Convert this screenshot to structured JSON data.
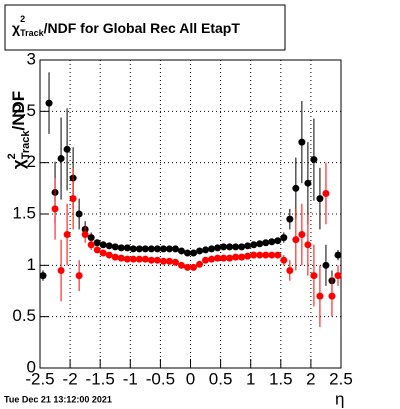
{
  "chart_data": {
    "type": "scatter",
    "title": {
      "symbol": "χ",
      "superscript": "2",
      "subscript": "Track",
      "text": "/NDF for Global Rec All EtapT"
    },
    "y_label": {
      "symbol": "χ",
      "superscript": "2",
      "subscript": "Track",
      "text": "/NDF"
    },
    "x_label": "η",
    "footer": "Tue Dec 21 13:12:00 2021",
    "x": [
      -2.45,
      -2.35,
      -2.25,
      -2.15,
      -2.05,
      -1.95,
      -1.85,
      -1.75,
      -1.65,
      -1.55,
      -1.45,
      -1.35,
      -1.25,
      -1.15,
      -1.05,
      -0.95,
      -0.85,
      -0.75,
      -0.65,
      -0.55,
      -0.45,
      -0.35,
      -0.25,
      -0.15,
      -0.05,
      0.05,
      0.15,
      0.25,
      0.35,
      0.45,
      0.55,
      0.65,
      0.75,
      0.85,
      0.95,
      1.05,
      1.15,
      1.25,
      1.35,
      1.45,
      1.55,
      1.65,
      1.75,
      1.85,
      1.95,
      2.05,
      2.15,
      2.25,
      2.35,
      2.45
    ],
    "series": [
      {
        "color": "#000000",
        "values": [
          0.9,
          2.58,
          1.71,
          2.04,
          2.13,
          1.85,
          1.5,
          1.35,
          1.27,
          1.22,
          1.2,
          1.19,
          1.18,
          1.17,
          1.17,
          1.16,
          1.16,
          1.16,
          1.16,
          1.16,
          1.16,
          1.16,
          1.16,
          1.14,
          1.12,
          1.12,
          1.14,
          1.15,
          1.16,
          1.17,
          1.18,
          1.18,
          1.18,
          1.18,
          1.19,
          1.2,
          1.21,
          1.22,
          1.23,
          1.24,
          1.27,
          1.45,
          1.75,
          2.2,
          1.8,
          2.03,
          1.65,
          1.0,
          0.85,
          1.1
        ],
        "errors": [
          0.05,
          0.3,
          0.3,
          0.4,
          0.4,
          0.3,
          0.15,
          0.08,
          0.05,
          0.03,
          0.02,
          0.02,
          0.02,
          0.02,
          0.02,
          0.02,
          0.02,
          0.02,
          0.02,
          0.02,
          0.02,
          0.02,
          0.02,
          0.02,
          0.02,
          0.02,
          0.02,
          0.02,
          0.02,
          0.02,
          0.02,
          0.02,
          0.02,
          0.02,
          0.02,
          0.02,
          0.02,
          0.02,
          0.03,
          0.03,
          0.05,
          0.1,
          0.3,
          0.4,
          0.4,
          0.4,
          0.3,
          0.2,
          0.1,
          0.05
        ]
      },
      {
        "color": "#ff0000",
        "values": [
          null,
          null,
          1.55,
          0.95,
          1.3,
          1.65,
          0.9,
          1.3,
          1.2,
          1.15,
          1.12,
          1.1,
          1.08,
          1.07,
          1.06,
          1.06,
          1.06,
          1.06,
          1.05,
          1.05,
          1.04,
          1.04,
          1.03,
          1.0,
          0.98,
          0.98,
          1.01,
          1.05,
          1.06,
          1.07,
          1.07,
          1.07,
          1.08,
          1.08,
          1.09,
          1.1,
          1.1,
          1.1,
          1.1,
          1.1,
          1.05,
          0.95,
          1.25,
          1.3,
          1.2,
          0.9,
          0.7,
          1.7,
          0.7,
          0.9
        ],
        "errors": [
          null,
          null,
          0.3,
          0.3,
          0.3,
          0.3,
          0.15,
          0.08,
          0.05,
          0.03,
          0.02,
          0.02,
          0.02,
          0.02,
          0.02,
          0.02,
          0.02,
          0.02,
          0.02,
          0.02,
          0.02,
          0.02,
          0.02,
          0.02,
          0.02,
          0.02,
          0.02,
          0.02,
          0.02,
          0.02,
          0.02,
          0.02,
          0.02,
          0.02,
          0.02,
          0.02,
          0.02,
          0.02,
          0.03,
          0.03,
          0.05,
          0.1,
          0.3,
          0.3,
          0.3,
          0.3,
          0.3,
          0.3,
          0.2,
          0.1
        ]
      }
    ],
    "xlim": [
      -2.5,
      2.5
    ],
    "xticks": [
      -2.5,
      -2,
      -1.5,
      -1,
      -0.5,
      0,
      0.5,
      1,
      1.5,
      2,
      2.5
    ],
    "ylim": [
      0,
      3
    ],
    "yticks": [
      0,
      0.5,
      1,
      1.5,
      2,
      2.5,
      3
    ],
    "grid": true
  }
}
